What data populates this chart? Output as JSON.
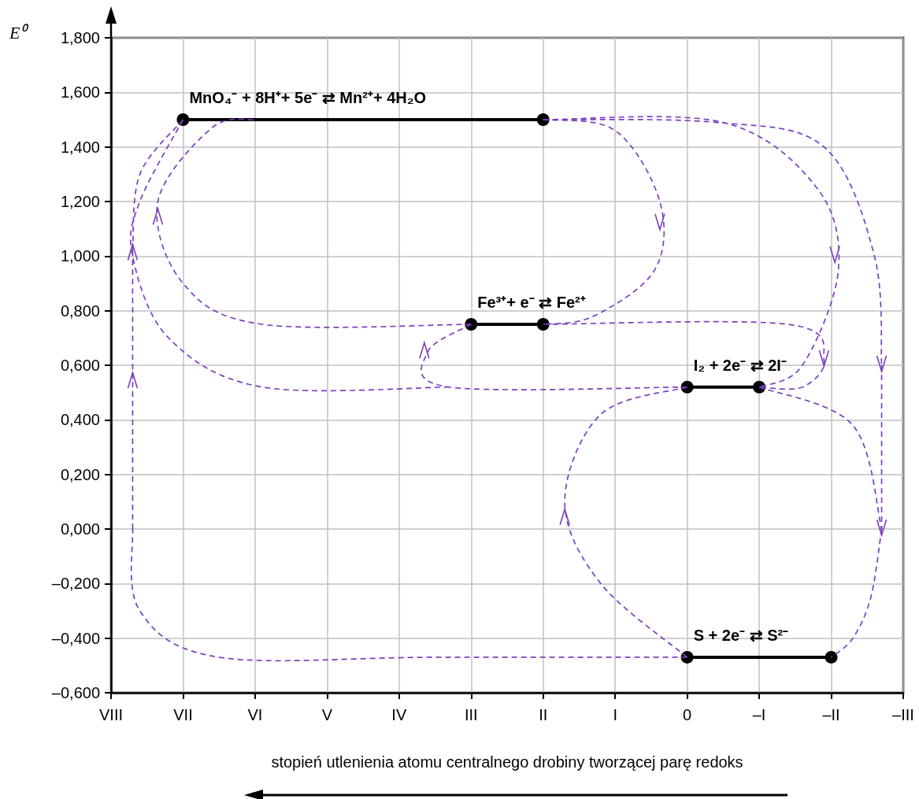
{
  "chart_data": {
    "type": "line",
    "xlabel": "stopień utlenienia atomu centralnego drobiny tworzącej parę redoks",
    "ylabel": "E⁰",
    "categories": [
      "VIII",
      "VII",
      "VI",
      "V",
      "IV",
      "III",
      "II",
      "I",
      "0",
      "–I",
      "–II",
      "–III"
    ],
    "ylim": [
      -0.6,
      1.8
    ],
    "yticks": [
      {
        "value": -0.6,
        "label": "–0,600"
      },
      {
        "value": -0.4,
        "label": "–0,400"
      },
      {
        "value": -0.2,
        "label": "–0,200"
      },
      {
        "value": 0,
        "label": "0,000"
      },
      {
        "value": 0.2,
        "label": "0,200"
      },
      {
        "value": 0.4,
        "label": "0,400"
      },
      {
        "value": 0.6,
        "label": "0,600"
      },
      {
        "value": 0.8,
        "label": "0,800"
      },
      {
        "value": 1.0,
        "label": "1,000"
      },
      {
        "value": 1.2,
        "label": "1,200"
      },
      {
        "value": 1.4,
        "label": "1,400"
      },
      {
        "value": 1.6,
        "label": "1,600"
      },
      {
        "value": 1.8,
        "label": "1,800"
      }
    ],
    "grid": true,
    "marker": "circle",
    "line_style": "solid",
    "series": [
      {
        "color": "#000000",
        "x": [
          "VII",
          "II"
        ],
        "values": [
          1.5,
          1.5
        ]
      },
      {
        "color": "#000000",
        "x": [
          "III",
          "II"
        ],
        "values": [
          0.75,
          0.75
        ]
      },
      {
        "color": "#000000",
        "x": [
          "0",
          "–I"
        ],
        "values": [
          0.52,
          0.52
        ]
      },
      {
        "color": "#000000",
        "x": [
          "0",
          "–II"
        ],
        "values": [
          -0.47,
          -0.47
        ]
      }
    ],
    "annotations": [
      {
        "text": "MnO₄⁻ + 8H⁺+ 5e⁻ ⇄ Mn²⁺+ 4H₂O",
        "x": "VII",
        "y": 1.5
      },
      {
        "text": "Fe³⁺+ e⁻ ⇄ Fe²⁺",
        "x": "III",
        "y": 0.75
      },
      {
        "text": "I₂ + 2e⁻ ⇄ 2I⁻",
        "x": "0",
        "y": 0.52
      },
      {
        "text": "S + 2e⁻ ⇄ S²⁻",
        "x": "0",
        "y": -0.47
      }
    ]
  }
}
